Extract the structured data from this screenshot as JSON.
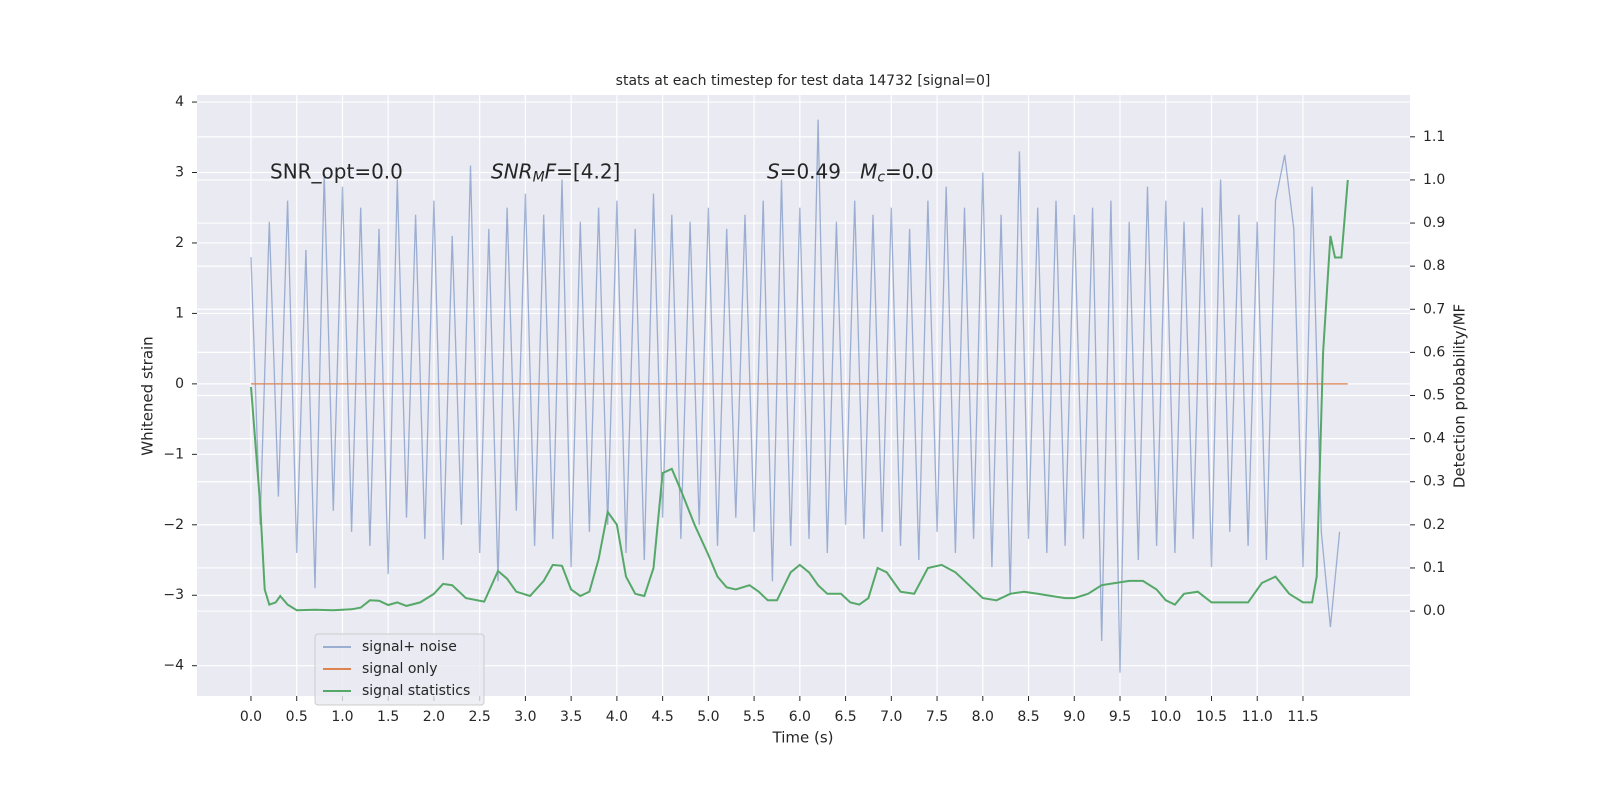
{
  "chart_data": {
    "type": "line",
    "title": "stats at each timestep for test data 14732 [signal=0]",
    "xlabel": "Time (s)",
    "ylabel": "Whitened strain",
    "y2label": "Detection probability/MF",
    "xlim": [
      -0.59,
      12.67
    ],
    "ylim": [
      -4.43,
      4.1
    ],
    "y2lim": [
      -0.197,
      1.197
    ],
    "xticks": [
      {
        "value": 0,
        "label": "0.0"
      },
      0.5,
      {
        "value": 1,
        "label": "1.0"
      },
      1.5,
      {
        "value": 2,
        "label": "2.0"
      },
      2.5,
      {
        "value": 3,
        "label": "3.0"
      },
      3.5,
      {
        "value": 4,
        "label": "4.0"
      },
      4.5,
      {
        "value": 5,
        "label": "5.0"
      },
      5.5,
      {
        "value": 6,
        "label": "6.0"
      },
      6.5,
      {
        "value": 7,
        "label": "7.0"
      },
      7.5,
      {
        "value": 8,
        "label": "8.0"
      },
      8.5,
      {
        "value": 9,
        "label": "9.0"
      },
      9.5,
      {
        "value": 10,
        "label": "10.0"
      },
      10.5,
      {
        "value": 11,
        "label": "11.0"
      },
      11.5
    ],
    "yticks": [
      {
        "value": -4,
        "label": "−4"
      },
      {
        "value": -3,
        "label": "−3"
      },
      {
        "value": -2,
        "label": "−2"
      },
      {
        "value": -1,
        "label": "−1"
      },
      0,
      1,
      2,
      3,
      4
    ],
    "y2ticks": [
      {
        "value": 0,
        "label": "0.0"
      },
      0.1,
      0.2,
      0.3,
      0.4,
      0.5,
      0.6,
      0.7,
      0.8,
      0.9,
      {
        "value": 1,
        "label": "1.0"
      },
      1.1
    ],
    "grid": true,
    "legend": "lower left",
    "annotations": [
      [
        {
          "text": "SNR_opt=0.0",
          "italic": false,
          "sub": false
        }
      ],
      [
        {
          "text": "SNR",
          "italic": true,
          "sub": false
        },
        {
          "text": "M",
          "italic": true,
          "sub": true
        },
        {
          "text": "F",
          "italic": true,
          "sub": false
        },
        {
          "text": "=[4.2]",
          "italic": false,
          "sub": false
        }
      ],
      [
        {
          "text": "S",
          "italic": true,
          "sub": false
        },
        {
          "text": "=0.49   ",
          "italic": false,
          "sub": false
        },
        {
          "text": "M",
          "italic": true,
          "sub": false
        },
        {
          "text": "c",
          "italic": true,
          "sub": true
        },
        {
          "text": "=0.0",
          "italic": false,
          "sub": false
        }
      ]
    ],
    "series": [
      {
        "name": "signal+ noise",
        "color": "#4c72b0",
        "alpha": 0.5,
        "axis": "y",
        "x": [
          0,
          0.1,
          0.2,
          0.3,
          0.4,
          0.5,
          0.6,
          0.7,
          0.8,
          0.9,
          1,
          1.1,
          1.2,
          1.3,
          1.4,
          1.5,
          1.6,
          1.7,
          1.8,
          1.9,
          2,
          2.1,
          2.2,
          2.3,
          2.4,
          2.5,
          2.6,
          2.7,
          2.8,
          2.9,
          3,
          3.1,
          3.2,
          3.3,
          3.4,
          3.5,
          3.6,
          3.7,
          3.8,
          3.9,
          4,
          4.1,
          4.2,
          4.3,
          4.4,
          4.5,
          4.6,
          4.7,
          4.8,
          4.9,
          5,
          5.1,
          5.2,
          5.3,
          5.4,
          5.5,
          5.6,
          5.7,
          5.8,
          5.9,
          6,
          6.1,
          6.2,
          6.3,
          6.4,
          6.5,
          6.6,
          6.7,
          6.8,
          6.9,
          7,
          7.1,
          7.2,
          7.3,
          7.4,
          7.5,
          7.6,
          7.7,
          7.8,
          7.9,
          8,
          8.1,
          8.2,
          8.3,
          8.4,
          8.5,
          8.6,
          8.7,
          8.8,
          8.9,
          9,
          9.1,
          9.2,
          9.3,
          9.4,
          9.5,
          9.6,
          9.7,
          9.8,
          9.9,
          10,
          10.1,
          10.2,
          10.3,
          10.4,
          10.5,
          10.6,
          10.7,
          10.8,
          10.9,
          11,
          11.1,
          11.2,
          11.3,
          11.4,
          11.5,
          11.6,
          11.7,
          11.8,
          11.9
        ],
        "values": [
          1.8,
          -2.0,
          2.3,
          -1.6,
          2.6,
          -2.4,
          1.9,
          -2.9,
          3.0,
          -1.8,
          2.8,
          -2.1,
          2.5,
          -2.3,
          2.2,
          -2.7,
          2.9,
          -1.9,
          2.4,
          -2.2,
          2.6,
          -2.5,
          2.1,
          -2.0,
          3.1,
          -2.4,
          2.2,
          -2.8,
          2.5,
          -1.8,
          2.7,
          -2.3,
          2.4,
          -2.2,
          2.9,
          -2.6,
          2.3,
          -2.1,
          2.5,
          -2.0,
          2.6,
          -2.4,
          2.2,
          -2.5,
          2.7,
          -1.9,
          2.4,
          -2.2,
          2.3,
          -2.0,
          2.5,
          -2.3,
          2.2,
          -1.9,
          2.4,
          -2.1,
          2.6,
          -2.8,
          2.9,
          -2.3,
          2.5,
          -2.2,
          3.75,
          -2.4,
          2.3,
          -2.0,
          2.6,
          -2.2,
          2.4,
          -2.1,
          2.5,
          -2.3,
          2.2,
          -2.5,
          2.6,
          -2.1,
          2.8,
          -2.4,
          2.5,
          -2.2,
          3.0,
          -2.6,
          2.4,
          -3.0,
          3.3,
          -2.2,
          2.5,
          -2.4,
          2.6,
          -2.3,
          2.4,
          -2.2,
          2.5,
          -3.65,
          2.6,
          -4.1,
          2.3,
          -2.5,
          2.8,
          -2.3,
          2.6,
          -2.4,
          2.3,
          -2.2,
          2.5,
          -2.6,
          2.9,
          -2.1,
          2.4,
          -2.3,
          2.3,
          -2.5,
          2.6,
          3.25,
          2.2,
          -2.6,
          2.8,
          -2.1,
          -3.45,
          -2.1
        ]
      },
      {
        "name": "signal only",
        "color": "#dd8452",
        "alpha": 1,
        "axis": "y",
        "x": [
          0,
          11.99
        ],
        "values": [
          0,
          0
        ]
      },
      {
        "name": "signal statistics",
        "color": "#55a868",
        "alpha": 1,
        "axis": "y2",
        "x": [
          0,
          0.1,
          0.15,
          0.2,
          0.27,
          0.32,
          0.4,
          0.5,
          0.7,
          0.9,
          1.1,
          1.2,
          1.3,
          1.4,
          1.5,
          1.6,
          1.7,
          1.85,
          2,
          2.1,
          2.2,
          2.35,
          2.55,
          2.7,
          2.8,
          2.9,
          3.05,
          3.2,
          3.3,
          3.4,
          3.5,
          3.6,
          3.7,
          3.8,
          3.9,
          4,
          4.1,
          4.2,
          4.3,
          4.4,
          4.5,
          4.6,
          4.7,
          4.85,
          5,
          5.1,
          5.2,
          5.3,
          5.45,
          5.55,
          5.65,
          5.75,
          5.9,
          6,
          6.1,
          6.2,
          6.3,
          6.45,
          6.55,
          6.65,
          6.75,
          6.85,
          6.95,
          7.1,
          7.25,
          7.4,
          7.55,
          7.7,
          7.85,
          8,
          8.15,
          8.3,
          8.45,
          8.6,
          8.75,
          8.9,
          9,
          9.15,
          9.3,
          9.45,
          9.6,
          9.75,
          9.9,
          10,
          10.1,
          10.2,
          10.35,
          10.5,
          10.7,
          10.9,
          11.05,
          11.2,
          11.35,
          11.5,
          11.6,
          11.65,
          11.72,
          11.8,
          11.85,
          11.92,
          11.99
        ],
        "values": [
          0.52,
          0.25,
          0.05,
          0.015,
          0.02,
          0.035,
          0.015,
          0.002,
          0.003,
          0.002,
          0.004,
          0.008,
          0.025,
          0.024,
          0.014,
          0.02,
          0.012,
          0.02,
          0.04,
          0.063,
          0.06,
          0.03,
          0.022,
          0.093,
          0.075,
          0.045,
          0.035,
          0.07,
          0.107,
          0.105,
          0.05,
          0.035,
          0.045,
          0.12,
          0.23,
          0.2,
          0.08,
          0.04,
          0.035,
          0.1,
          0.32,
          0.33,
          0.28,
          0.2,
          0.13,
          0.08,
          0.055,
          0.05,
          0.06,
          0.045,
          0.025,
          0.025,
          0.09,
          0.107,
          0.09,
          0.06,
          0.04,
          0.04,
          0.02,
          0.015,
          0.03,
          0.1,
          0.09,
          0.045,
          0.04,
          0.1,
          0.107,
          0.09,
          0.06,
          0.03,
          0.025,
          0.04,
          0.045,
          0.04,
          0.035,
          0.03,
          0.03,
          0.04,
          0.06,
          0.065,
          0.07,
          0.07,
          0.05,
          0.025,
          0.015,
          0.04,
          0.045,
          0.02,
          0.02,
          0.02,
          0.065,
          0.08,
          0.04,
          0.02,
          0.02,
          0.08,
          0.6,
          0.87,
          0.82,
          0.82,
          1.0
        ]
      }
    ]
  }
}
